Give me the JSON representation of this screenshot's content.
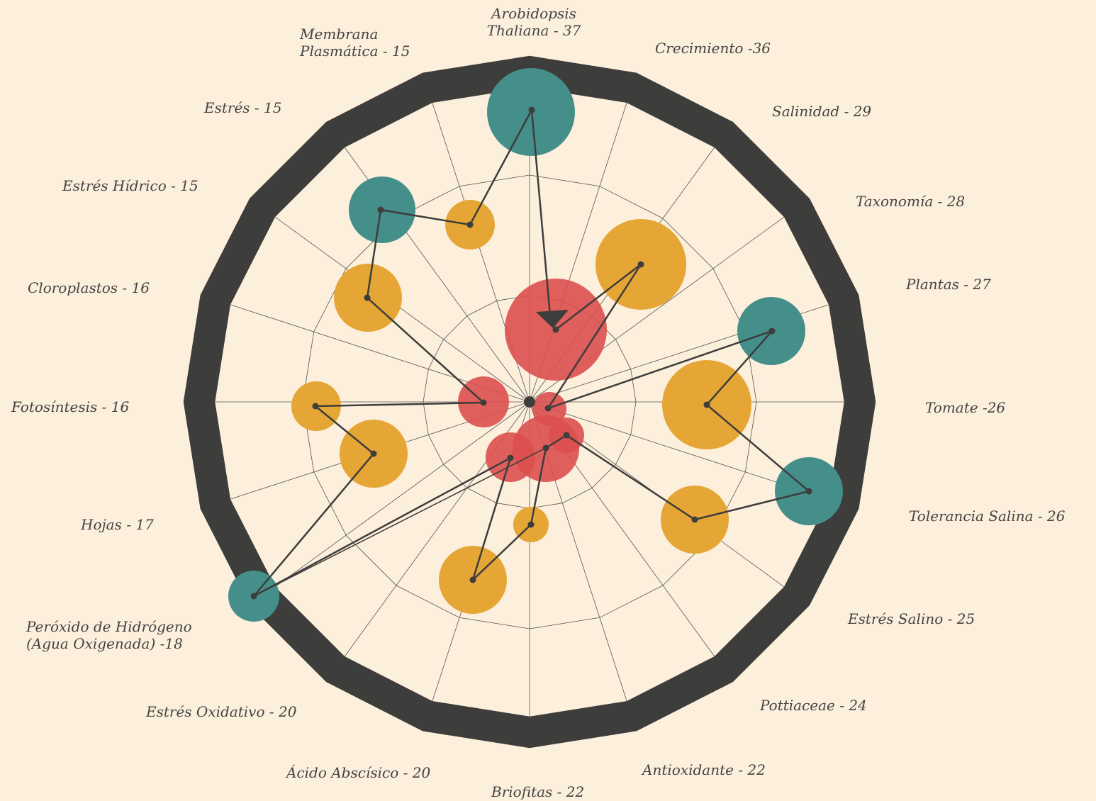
{
  "labels": [
    [
      "Arobidopsis",
      "Thaliana - 37"
    ],
    [
      "Crecimiento -36"
    ],
    [
      "Salinidad - 29"
    ],
    [
      "Taxonomía - 28"
    ],
    [
      "Plantas - 27"
    ],
    [
      "Tomate -26"
    ],
    [
      "Tolerancia Salina - 26"
    ],
    [
      "Estrés Salino - 25"
    ],
    [
      "Pottiaceae - 24"
    ],
    [
      "Antioxidante - 22"
    ],
    [
      "Briofitas - 22"
    ],
    [
      "Ácido Abscísico - 20"
    ],
    [
      "Estrés Oxidativo - 20"
    ],
    [
      "Peróxido de Hidrógeno",
      "(Agua Oxigenada) -18"
    ],
    [
      "Hojas - 17"
    ],
    [
      "Fotosíntesis - 16"
    ],
    [
      "Cloroplastos - 16"
    ],
    [
      "Estrés Hídrico - 15"
    ],
    [
      "Estrés - 15"
    ],
    [
      "Membrana",
      "Plasmática - 15"
    ]
  ]
}
